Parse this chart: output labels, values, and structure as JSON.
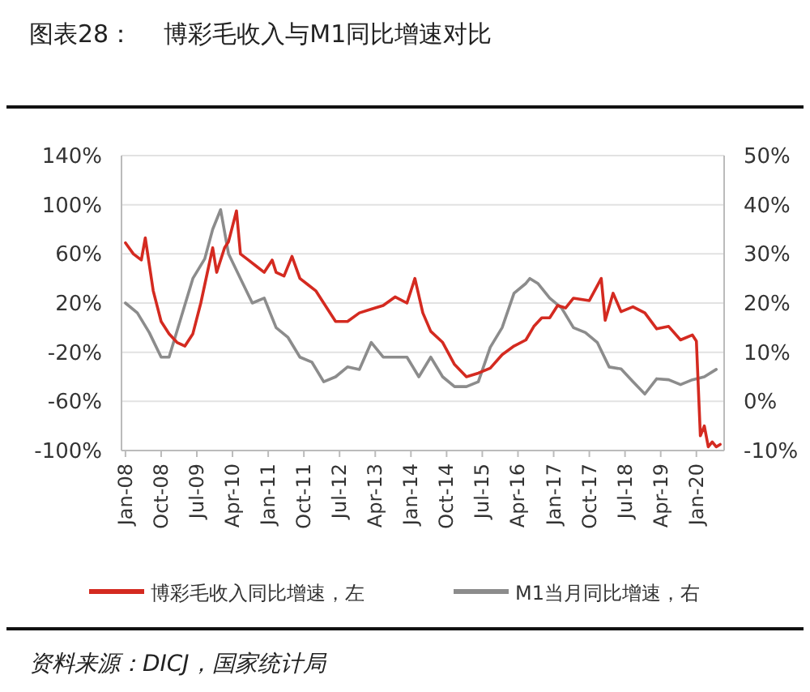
{
  "chart_data": {
    "type": "line",
    "title": "图表28：    博彩毛收入与M1同比增速对比",
    "annotations": [
      "资料来源：DICJ，国家统计局"
    ],
    "xlim": [
      "2007-12",
      "2020-08"
    ],
    "xticks": [
      {
        "value": "2008-01",
        "label": "Jan-08"
      },
      {
        "value": "2008-10",
        "label": "Oct-08"
      },
      {
        "value": "2009-07",
        "label": "Jul-09"
      },
      {
        "value": "2010-04",
        "label": "Apr-10"
      },
      {
        "value": "2011-01",
        "label": "Jan-11"
      },
      {
        "value": "2011-10",
        "label": "Oct-11"
      },
      {
        "value": "2012-07",
        "label": "Jul-12"
      },
      {
        "value": "2013-04",
        "label": "Apr-13"
      },
      {
        "value": "2014-01",
        "label": "Jan-14"
      },
      {
        "value": "2014-10",
        "label": "Oct-14"
      },
      {
        "value": "2015-07",
        "label": "Jul-15"
      },
      {
        "value": "2016-04",
        "label": "Apr-16"
      },
      {
        "value": "2017-01",
        "label": "Jan-17"
      },
      {
        "value": "2017-10",
        "label": "Oct-17"
      },
      {
        "value": "2018-07",
        "label": "Jul-18"
      },
      {
        "value": "2019-04",
        "label": "Apr-19"
      },
      {
        "value": "2020-01",
        "label": "Jan-20"
      }
    ],
    "ylim": [
      -100,
      140
    ],
    "yticks": [
      {
        "value": -100,
        "label": "-100%"
      },
      {
        "value": -60,
        "label": "-60%"
      },
      {
        "value": -20,
        "label": "-20%"
      },
      {
        "value": 20,
        "label": "20%"
      },
      {
        "value": 60,
        "label": "60%"
      },
      {
        "value": 100,
        "label": "100%"
      },
      {
        "value": 140,
        "label": "140%"
      }
    ],
    "y2lim": [
      -10,
      50
    ],
    "y2ticks": [
      {
        "value": -10,
        "label": "-10%"
      },
      {
        "value": 0,
        "label": "0%"
      },
      {
        "value": 10,
        "label": "10%"
      },
      {
        "value": 20,
        "label": "20%"
      },
      {
        "value": 30,
        "label": "30%"
      },
      {
        "value": 40,
        "label": "40%"
      },
      {
        "value": 50,
        "label": "50%"
      }
    ],
    "grid": "y",
    "legend": "bottom",
    "series": [
      {
        "name": "M1当月同比增速，右",
        "color": "#8c8c8c",
        "axis": "y2",
        "x": [
          "2008-01",
          "2008-04",
          "2008-07",
          "2008-10",
          "2008-12",
          "2009-03",
          "2009-06",
          "2009-09",
          "2009-11",
          "2010-01",
          "2010-03",
          "2010-06",
          "2010-09",
          "2010-12",
          "2011-03",
          "2011-06",
          "2011-09",
          "2011-12",
          "2012-03",
          "2012-06",
          "2012-09",
          "2012-12",
          "2013-03",
          "2013-06",
          "2013-09",
          "2013-12",
          "2014-03",
          "2014-06",
          "2014-09",
          "2014-12",
          "2015-03",
          "2015-06",
          "2015-09",
          "2015-12",
          "2016-03",
          "2016-06",
          "2016-07",
          "2016-09",
          "2016-12",
          "2017-03",
          "2017-06",
          "2017-09",
          "2017-12",
          "2018-03",
          "2018-06",
          "2018-09",
          "2018-12",
          "2019-03",
          "2019-06",
          "2019-09",
          "2019-12",
          "2020-03",
          "2020-06"
        ],
        "values": [
          20,
          18,
          14,
          9,
          9,
          17,
          25,
          29,
          35,
          39,
          30,
          25,
          20,
          21,
          15,
          13,
          9,
          8,
          4,
          5,
          7,
          6.5,
          12,
          9,
          9,
          9,
          5,
          9,
          5,
          3,
          3,
          4,
          11,
          15,
          22,
          24,
          25,
          24,
          21,
          19,
          15,
          14,
          12,
          7,
          6.6,
          4,
          1.5,
          4.6,
          4.4,
          3.4,
          4.4,
          5,
          6.5
        ]
      },
      {
        "name": "博彩毛收入同比增速，左",
        "color": "#d42a20",
        "x": [
          "2008-01",
          "2008-03",
          "2008-05",
          "2008-06",
          "2008-08",
          "2008-10",
          "2008-12",
          "2009-02",
          "2009-04",
          "2009-06",
          "2009-08",
          "2009-10",
          "2009-11",
          "2009-12",
          "2010-02",
          "2010-03",
          "2010-05",
          "2010-06",
          "2010-08",
          "2010-10",
          "2010-12",
          "2011-02",
          "2011-03",
          "2011-05",
          "2011-07",
          "2011-09",
          "2011-11",
          "2012-01",
          "2012-03",
          "2012-06",
          "2012-09",
          "2012-12",
          "2013-03",
          "2013-06",
          "2013-09",
          "2013-12",
          "2014-02",
          "2014-04",
          "2014-06",
          "2014-09",
          "2014-12",
          "2015-03",
          "2015-06",
          "2015-09",
          "2015-12",
          "2016-03",
          "2016-06",
          "2016-08",
          "2016-10",
          "2016-12",
          "2017-02",
          "2017-04",
          "2017-06",
          "2017-08",
          "2017-10",
          "2018-01",
          "2018-02",
          "2018-04",
          "2018-06",
          "2018-09",
          "2018-12",
          "2019-03",
          "2019-06",
          "2019-09",
          "2019-12",
          "2020-01",
          "2020-02",
          "2020-03",
          "2020-04",
          "2020-05",
          "2020-06",
          "2020-07"
        ],
        "values": [
          69,
          60,
          55,
          73,
          30,
          5,
          -5,
          -12,
          -15,
          -5,
          20,
          50,
          65,
          45,
          65,
          70,
          95,
          60,
          55,
          50,
          45,
          55,
          45,
          42,
          58,
          40,
          35,
          30,
          20,
          5,
          5,
          12,
          15,
          18,
          25,
          20,
          40,
          12,
          -3,
          -12,
          -30,
          -40,
          -37,
          -33,
          -22,
          -15,
          -10,
          1,
          8,
          8,
          18,
          16,
          24,
          23,
          22,
          40,
          6,
          28,
          13,
          17,
          12,
          -1,
          1,
          -10,
          -6,
          -11,
          -88,
          -80,
          -97,
          -93,
          -97,
          -95
        ]
      }
    ]
  }
}
